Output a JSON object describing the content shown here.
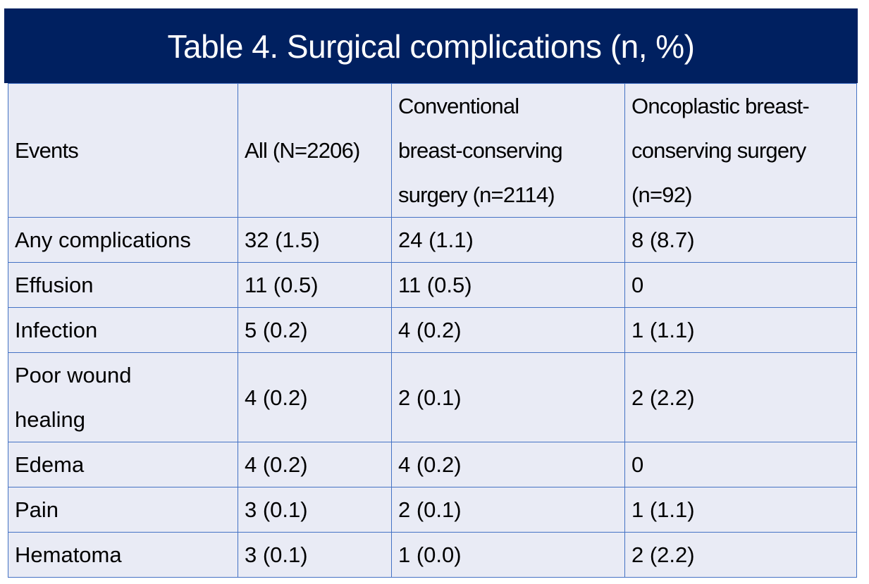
{
  "title": "Table 4. Surgical complications (n, %)",
  "colors": {
    "title_background": "#002060",
    "title_text": "#ffffff",
    "table_background": "#e9ebf5",
    "grid_lines": "#4472c4"
  },
  "table": {
    "headers": [
      "Events",
      "All (N=2206)",
      "Conventional breast-conserving surgery (n=2114)",
      "Oncoplastic breast-conserving surgery (n=92)"
    ],
    "header_lines": {
      "conventional": [
        "Conventional",
        "breast-conserving",
        "surgery (n=2114)"
      ],
      "oncoplastic": [
        "Oncoplastic breast-",
        "conserving surgery",
        "(n=92)"
      ]
    },
    "rows": [
      {
        "event": "Any complications",
        "all": "32 (1.5)",
        "conventional": "24 (1.1)",
        "oncoplastic": "8 (8.7)"
      },
      {
        "event": "Effusion",
        "all": "11 (0.5)",
        "conventional": "11 (0.5)",
        "oncoplastic": "0"
      },
      {
        "event": "Infection",
        "all": "5 (0.2)",
        "conventional": "4 (0.2)",
        "oncoplastic": "1 (1.1)"
      },
      {
        "event": "Poor wound healing",
        "event_lines": [
          "Poor wound",
          "healing"
        ],
        "all": "4 (0.2)",
        "conventional": "2 (0.1)",
        "oncoplastic": "2 (2.2)"
      },
      {
        "event": "Edema",
        "all": "4 (0.2)",
        "conventional": "4 (0.2)",
        "oncoplastic": "0"
      },
      {
        "event": "Pain",
        "all": "3 (0.1)",
        "conventional": "2 (0.1)",
        "oncoplastic": "1 (1.1)"
      },
      {
        "event": "Hematoma",
        "all": "3 (0.1)",
        "conventional": "1 (0.0)",
        "oncoplastic": "2 (2.2)"
      }
    ]
  }
}
